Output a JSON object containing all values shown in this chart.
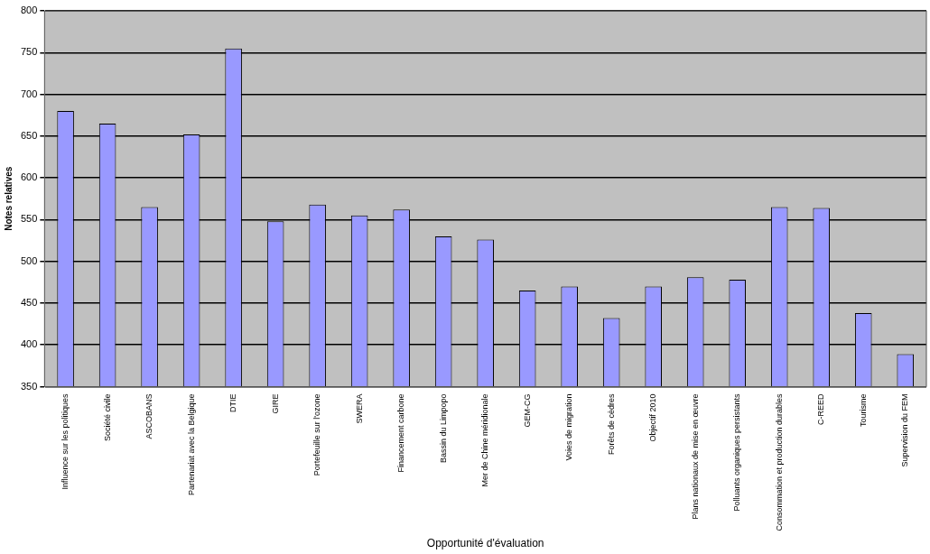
{
  "chart_data": {
    "type": "bar",
    "xlabel": "Opportunité d'évaluation",
    "ylabel": "Notes relatives",
    "categories": [
      "Influence sur les politiques",
      "Société civile",
      "ASCOBANS",
      "Partenariat avec la Belgique",
      "DTIE",
      "GIRE",
      "Portefeuille sur l'ozone",
      "SWERA",
      "Financement carbone",
      "Bassin du Limpopo",
      "Mer de Chine méridionale",
      "GEM-CG",
      "Voies de migration",
      "Forêts de cèdres",
      "Objectif 2010",
      "Plans nationaux de mise en œuvre",
      "Polluants organiques persistants",
      "Consommation et production durables",
      "C-REED",
      "Tourisme",
      "Supervision du FEM"
    ],
    "values": [
      680,
      665,
      565,
      652,
      755,
      548,
      568,
      555,
      562,
      530,
      526,
      465,
      470,
      432,
      470,
      481,
      478,
      565,
      564,
      438,
      389
    ],
    "color": "#9999ff",
    "ylim": [
      350,
      800
    ],
    "yticks": [
      350,
      400,
      450,
      500,
      550,
      600,
      650,
      700,
      750,
      800
    ],
    "grid": "y",
    "legend": false
  }
}
